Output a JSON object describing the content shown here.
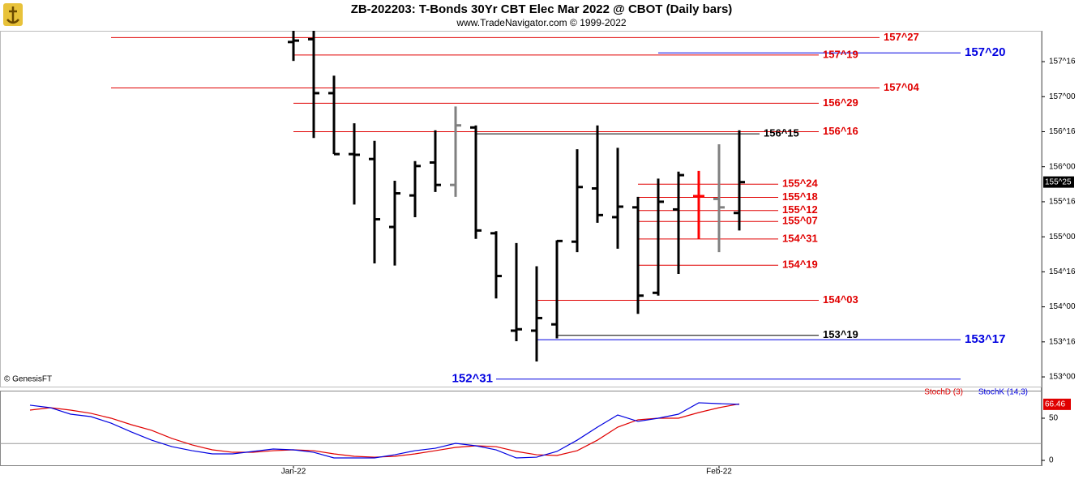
{
  "chart_data": {
    "type": "ohlc",
    "title": "ZB-202203:  T-Bonds 30Yr CBT Elec Mar 2022 @ CBOT  (Daily bars)",
    "subtitle": "www.TradeNavigator.com © 1999-2022",
    "credit": "© GenesisFT",
    "categories": [
      null,
      null,
      null,
      null,
      null,
      null,
      null,
      null,
      null,
      null,
      null,
      null,
      null,
      "Jan-22",
      null,
      null,
      null,
      null,
      null,
      null,
      null,
      null,
      null,
      null,
      null,
      null,
      null,
      null,
      null,
      null,
      null,
      null,
      null,
      null,
      "Feb-22",
      null
    ],
    "open": [
      null,
      null,
      null,
      null,
      null,
      null,
      null,
      null,
      null,
      null,
      null,
      null,
      null,
      157.78,
      157.82,
      157.05,
      156.18,
      156.11,
      155.14,
      155.59,
      156.06,
      155.74,
      156.56,
      155.05,
      153.66,
      153.66,
      153.75,
      154.93,
      155.69,
      155.28,
      155.42,
      154.2,
      155.39,
      155.58,
      155.54,
      155.34
    ],
    "high": [
      null,
      null,
      null,
      null,
      null,
      null,
      null,
      null,
      null,
      null,
      null,
      null,
      null,
      157.94,
      157.94,
      157.3,
      156.62,
      156.37,
      155.8,
      156.08,
      156.52,
      156.86,
      156.59,
      155.08,
      154.91,
      154.58,
      154.95,
      156.25,
      156.59,
      156.27,
      155.57,
      155.83,
      155.93,
      155.94,
      156.32,
      156.52
    ],
    "low": [
      null,
      null,
      null,
      null,
      null,
      null,
      null,
      null,
      null,
      null,
      null,
      null,
      null,
      157.51,
      156.41,
      156.18,
      155.46,
      154.62,
      154.59,
      155.28,
      155.64,
      155.57,
      154.97,
      154.12,
      153.51,
      153.22,
      153.55,
      154.78,
      155.2,
      154.83,
      153.9,
      154.16,
      154.47,
      154.97,
      154.78,
      155.09
    ],
    "close": [
      null,
      null,
      null,
      null,
      null,
      null,
      null,
      null,
      null,
      null,
      null,
      null,
      null,
      157.8,
      157.05,
      156.18,
      156.17,
      155.25,
      155.62,
      156.01,
      155.74,
      156.59,
      155.09,
      154.44,
      153.68,
      153.84,
      154.94,
      155.71,
      155.31,
      155.43,
      154.16,
      155.5,
      155.88,
      155.58,
      155.42,
      155.78
    ],
    "bar_colors": [
      "#000000",
      "#000000",
      "#000000",
      "#000000",
      "#000000",
      "#000000",
      "#000000",
      "#000000",
      "#000000",
      "#000000",
      "#000000",
      "#000000",
      "#000000",
      "#000000",
      "#000000",
      "#000000",
      "#000000",
      "#000000",
      "#000000",
      "#000000",
      "#000000",
      "#808080",
      "#000000",
      "#000000",
      "#000000",
      "#000000",
      "#000000",
      "#000000",
      "#000000",
      "#000000",
      "#000000",
      "#000000",
      "#000000",
      "#ff0000",
      "#808080",
      "#000000"
    ],
    "ylim": [
      152.85,
      157.94
    ],
    "yticks": [
      {
        "value": 157.5,
        "label": "157^16"
      },
      {
        "value": 157,
        "label": "157^00"
      },
      {
        "value": 156.5,
        "label": "156^16"
      },
      {
        "value": 156,
        "label": "156^00"
      },
      {
        "value": 155.5,
        "label": "155^16"
      },
      {
        "value": 155,
        "label": "155^00"
      },
      {
        "value": 154.5,
        "label": "154^16"
      },
      {
        "value": 154,
        "label": "154^00"
      },
      {
        "value": 153.5,
        "label": "153^16"
      },
      {
        "value": 153,
        "label": "153^00"
      }
    ],
    "last_price": {
      "value": 155.78125,
      "label": "155^25"
    },
    "levels": [
      {
        "value": 157.84375,
        "label": "157^27",
        "color": "#e00000"
      },
      {
        "value": 157.59375,
        "label": "157^19",
        "color": "#e00000"
      },
      {
        "value": 157.625,
        "label": "157^20",
        "color": "#0000e0"
      },
      {
        "value": 157.125,
        "label": "157^04",
        "color": "#e00000"
      },
      {
        "value": 156.90625,
        "label": "156^29",
        "color": "#e00000"
      },
      {
        "value": 156.5,
        "label": "156^16",
        "color": "#e00000"
      },
      {
        "value": 156.46875,
        "label": "156^15",
        "color": "#000000"
      },
      {
        "value": 155.75,
        "label": "155^24",
        "color": "#e00000"
      },
      {
        "value": 155.5625,
        "label": "155^18",
        "color": "#e00000"
      },
      {
        "value": 155.375,
        "label": "155^12",
        "color": "#e00000"
      },
      {
        "value": 155.21875,
        "label": "155^07",
        "color": "#e00000"
      },
      {
        "value": 154.96875,
        "label": "154^31",
        "color": "#e00000"
      },
      {
        "value": 154.59375,
        "label": "154^19",
        "color": "#e00000"
      },
      {
        "value": 154.09375,
        "label": "154^03",
        "color": "#e00000"
      },
      {
        "value": 153.59375,
        "label": "153^19",
        "color": "#000000"
      },
      {
        "value": 153.53125,
        "label": "153^17",
        "color": "#0000e0"
      },
      {
        "value": 152.96875,
        "label": "152^31",
        "color": "#0000e0"
      }
    ],
    "indicator": {
      "type": "line",
      "ylim": [
        -6.7,
        81.7
      ],
      "yticks": [
        0,
        50
      ],
      "levels": [
        20
      ],
      "series": [
        {
          "name": "StochD (3)",
          "color": "#e00000",
          "values": [
            59.6,
            62.5,
            59.6,
            55.8,
            50,
            42.3,
            35.6,
            26,
            18.3,
            12.5,
            9.6,
            9.6,
            11.5,
            12.5,
            11.5,
            7.7,
            4.8,
            3.8,
            4.8,
            7.7,
            11.5,
            15.4,
            17.3,
            16.3,
            10.6,
            6.7,
            5.8,
            11.5,
            24,
            39.4,
            48.1,
            50,
            50,
            56.7,
            62.5,
            67
          ]
        },
        {
          "name": "StochK (14,3)",
          "color": "#0000e0",
          "values": [
            65.4,
            62.5,
            54.8,
            51.9,
            44.2,
            33.7,
            24,
            16.3,
            11.5,
            7.7,
            7.7,
            10.6,
            13.5,
            12.5,
            9.6,
            2.9,
            2.9,
            2.9,
            6.7,
            11.5,
            14.4,
            20.2,
            17.3,
            12.5,
            2.9,
            3.8,
            10.6,
            24,
            39.4,
            53.8,
            46.2,
            50,
            54.8,
            68.3,
            67.3,
            66.46
          ]
        }
      ]
    }
  }
}
